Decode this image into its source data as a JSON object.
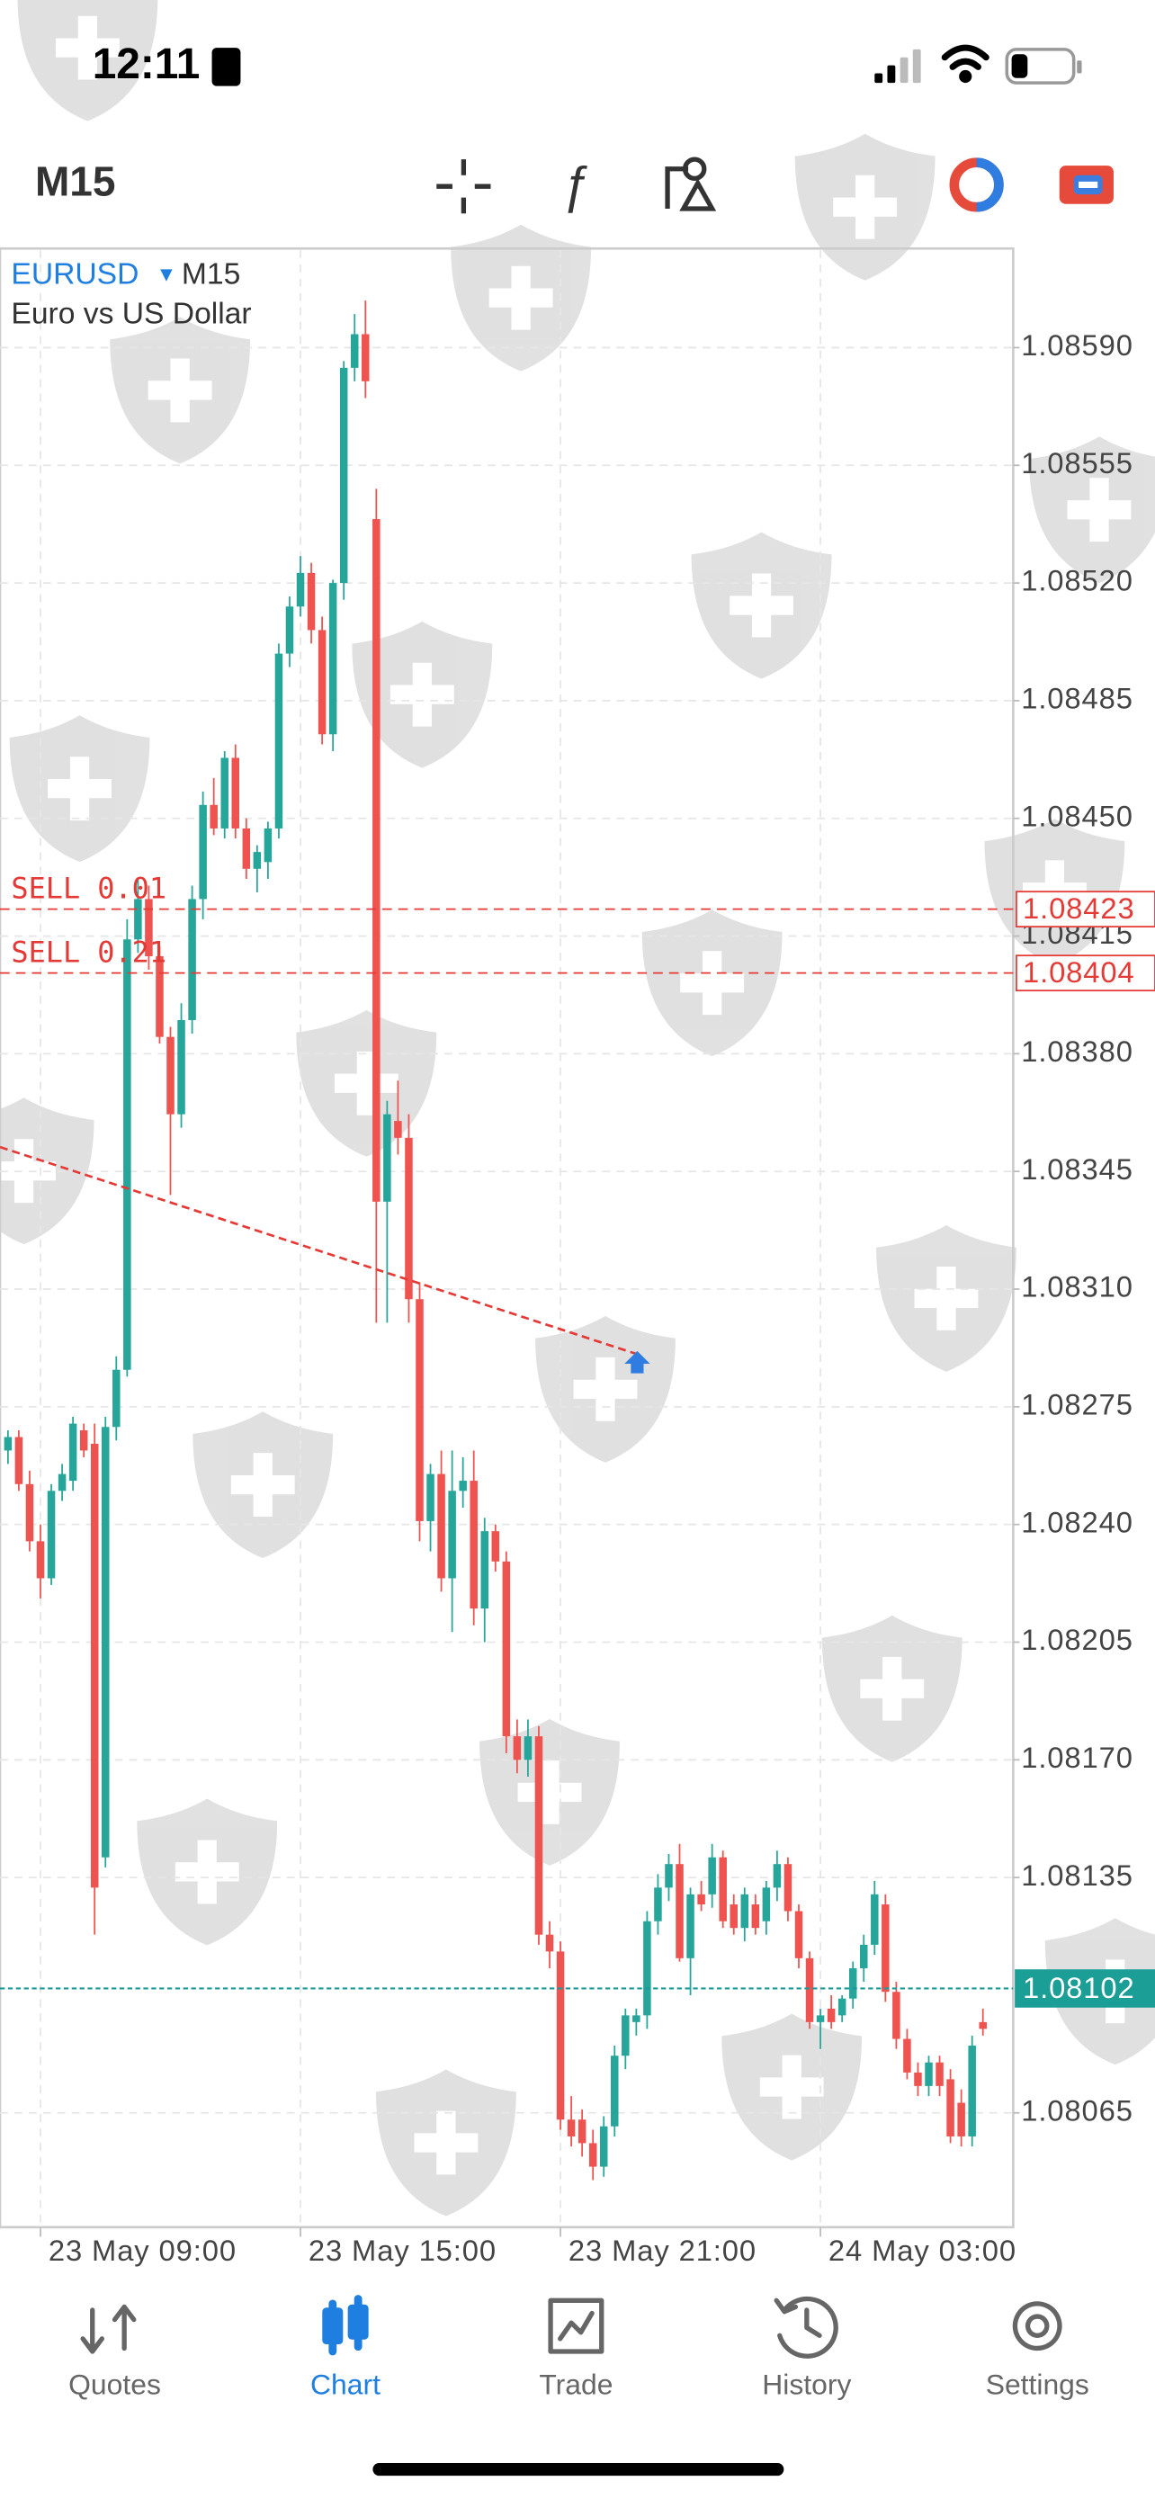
{
  "status_bar": {
    "time": "12:11"
  },
  "toolbar": {
    "timeframe": "M15"
  },
  "chart_data": {
    "type": "candlestick",
    "symbol": "EURUSD",
    "timeframe": "M15",
    "description": "Euro vs US Dollar",
    "categories": [
      null,
      null,
      null,
      "23 May 09:00",
      null,
      null,
      null,
      null,
      null,
      null,
      null,
      null,
      null,
      null,
      null,
      null,
      null,
      null,
      null,
      null,
      null,
      null,
      null,
      null,
      null,
      null,
      null,
      "23 May 15:00",
      null,
      null,
      null,
      null,
      null,
      null,
      null,
      null,
      null,
      null,
      null,
      null,
      null,
      null,
      null,
      null,
      null,
      null,
      null,
      null,
      null,
      null,
      null,
      "23 May 21:00",
      null,
      null,
      null,
      null,
      null,
      null,
      null,
      null,
      null,
      null,
      null,
      null,
      null,
      null,
      null,
      null,
      null,
      null,
      null,
      null,
      null,
      null,
      null,
      "24 May 03:00",
      null,
      null,
      null,
      null,
      null,
      null,
      null,
      null,
      null,
      null,
      null,
      null,
      null,
      null,
      null
    ],
    "open": [
      1.08262,
      1.08266,
      1.08252,
      1.08235,
      1.08224,
      1.0825,
      1.08253,
      1.08268,
      1.08264,
      1.08141,
      1.08269,
      1.08286,
      1.08414,
      1.08426,
      1.08409,
      1.08385,
      1.08362,
      1.0839,
      1.08426,
      1.08454,
      1.08447,
      1.08468,
      1.08447,
      1.08435,
      1.08437,
      1.08447,
      1.08499,
      1.08513,
      1.08523,
      1.08506,
      1.08475,
      1.0852,
      1.08584,
      1.08594,
      1.08539,
      1.08336,
      1.0836,
      1.08355,
      1.08307,
      1.08241,
      1.08255,
      1.08224,
      1.0825,
      1.08253,
      1.08215,
      1.08238,
      1.08229,
      1.08177,
      1.0817,
      1.08177,
      1.08118,
      1.08113,
      1.08063,
      1.08063,
      1.08056,
      1.08049,
      1.08061,
      1.08082,
      1.08092,
      1.08094,
      1.08122,
      1.08132,
      1.08139,
      1.08111,
      1.0813,
      1.0813,
      1.08141,
      1.08127,
      1.0812,
      1.08127,
      1.08122,
      1.08132,
      1.08139,
      1.08125,
      1.08111,
      1.08092,
      1.08096,
      1.08094,
      1.08099,
      1.08108,
      1.08115,
      1.08127,
      1.08101,
      1.08087,
      1.08077,
      1.08073,
      1.0808,
      1.08075,
      1.08068,
      1.08058,
      1.08092
    ],
    "high": [
      1.08268,
      1.08268,
      1.08256,
      1.0824,
      1.08252,
      1.08258,
      1.08272,
      1.0827,
      1.0827,
      1.08272,
      1.0829,
      1.0842,
      1.08432,
      1.0843,
      1.08412,
      1.08388,
      1.08395,
      1.0843,
      1.08458,
      1.08462,
      1.0847,
      1.08472,
      1.0845,
      1.08442,
      1.08449,
      1.08502,
      1.08516,
      1.08528,
      1.08526,
      1.0851,
      1.08521,
      1.08586,
      1.086,
      1.08604,
      1.08548,
      1.08366,
      1.08372,
      1.08362,
      1.08312,
      1.08258,
      1.08262,
      1.08262,
      1.0826,
      1.08262,
      1.08242,
      1.0824,
      1.08232,
      1.08182,
      1.08182,
      1.0818,
      1.08122,
      1.08116,
      1.0807,
      1.08066,
      1.0806,
      1.08064,
      1.08085,
      1.08096,
      1.08096,
      1.08125,
      1.08136,
      1.08142,
      1.08145,
      1.08132,
      1.08134,
      1.08145,
      1.08143,
      1.0813,
      1.08132,
      1.0813,
      1.08134,
      1.08143,
      1.08141,
      1.08127,
      1.08113,
      1.08096,
      1.081,
      1.081,
      1.0811,
      1.08118,
      1.08134,
      1.0813,
      1.08104,
      1.0809,
      1.0808,
      1.08082,
      1.08082,
      1.08078,
      1.08072,
      1.08088,
      1.08096
    ],
    "low": [
      1.08258,
      1.0825,
      1.08232,
      1.08218,
      1.08222,
      1.08247,
      1.0825,
      1.0826,
      1.08118,
      1.08138,
      1.08265,
      1.08284,
      1.0841,
      1.08405,
      1.08383,
      1.08338,
      1.08358,
      1.08386,
      1.0842,
      1.08445,
      1.08444,
      1.08444,
      1.08432,
      1.08428,
      1.08432,
      1.08444,
      1.08495,
      1.0851,
      1.08502,
      1.08472,
      1.0847,
      1.08515,
      1.0858,
      1.08575,
      1.083,
      1.083,
      1.0835,
      1.083,
      1.08235,
      1.08232,
      1.0822,
      1.08208,
      1.08245,
      1.0821,
      1.08205,
      1.08226,
      1.08172,
      1.08166,
      1.08165,
      1.08115,
      1.08108,
      1.0806,
      1.08055,
      1.08052,
      1.08045,
      1.08046,
      1.08058,
      1.08078,
      1.08088,
      1.0809,
      1.08118,
      1.08128,
      1.0811,
      1.081,
      1.08125,
      1.08126,
      1.0812,
      1.08118,
      1.08116,
      1.08118,
      1.08118,
      1.08128,
      1.08122,
      1.08108,
      1.0809,
      1.08084,
      1.0809,
      1.08092,
      1.08096,
      1.08104,
      1.08112,
      1.08098,
      1.08084,
      1.08075,
      1.0807,
      1.0807,
      1.0807,
      1.08056,
      1.08055,
      1.08055,
      1.08088
    ],
    "close": [
      1.08266,
      1.08252,
      1.08235,
      1.08224,
      1.0825,
      1.08255,
      1.0827,
      1.08262,
      1.08132,
      1.08269,
      1.08286,
      1.08414,
      1.08426,
      1.08409,
      1.08385,
      1.08362,
      1.0839,
      1.08426,
      1.08454,
      1.08447,
      1.08468,
      1.08447,
      1.08435,
      1.0844,
      1.08447,
      1.08499,
      1.08513,
      1.08523,
      1.08506,
      1.08475,
      1.0852,
      1.08584,
      1.08594,
      1.0858,
      1.08336,
      1.08362,
      1.08355,
      1.08307,
      1.08241,
      1.08255,
      1.08224,
      1.0825,
      1.08253,
      1.08215,
      1.08238,
      1.08229,
      1.08177,
      1.0817,
      1.08177,
      1.08118,
      1.08113,
      1.08063,
      1.08058,
      1.08056,
      1.08049,
      1.08061,
      1.08082,
      1.08094,
      1.08094,
      1.08122,
      1.08132,
      1.08139,
      1.08111,
      1.0813,
      1.08127,
      1.08141,
      1.08122,
      1.0812,
      1.0813,
      1.0812,
      1.08132,
      1.08139,
      1.08125,
      1.08111,
      1.08092,
      1.08094,
      1.08092,
      1.08099,
      1.08108,
      1.08115,
      1.0813,
      1.08101,
      1.08087,
      1.08077,
      1.08073,
      1.0808,
      1.08073,
      1.08058,
      1.08058,
      1.08085,
      1.0809
    ],
    "up_color": "#26a69a",
    "down_color": "#ef5350",
    "ylim": [
      1.08031,
      1.08619
    ],
    "yticks": [
      {
        "value": 1.0859,
        "label": "1.08590"
      },
      1.08555,
      {
        "value": 1.0852,
        "label": "1.08520"
      },
      1.08485,
      {
        "value": 1.0845,
        "label": "1.08450"
      },
      1.08415,
      {
        "value": 1.0838,
        "label": "1.08380"
      },
      1.08345,
      {
        "value": 1.0831,
        "label": "1.08310"
      },
      1.08275,
      {
        "value": 1.0824,
        "label": "1.08240"
      },
      1.08205,
      {
        "value": 1.0817,
        "label": "1.08170"
      },
      1.08135,
      1.08065
    ],
    "grid": true,
    "orders": [
      {
        "label": "SELL 0.01",
        "price": 1.08423
      },
      {
        "label": "SELL 0.21",
        "price": 1.08404
      }
    ],
    "current_price": 1.08102
  },
  "tab_bar": {
    "tabs": [
      "Quotes",
      "Chart",
      "Trade",
      "History",
      "Settings"
    ],
    "active": 1
  }
}
